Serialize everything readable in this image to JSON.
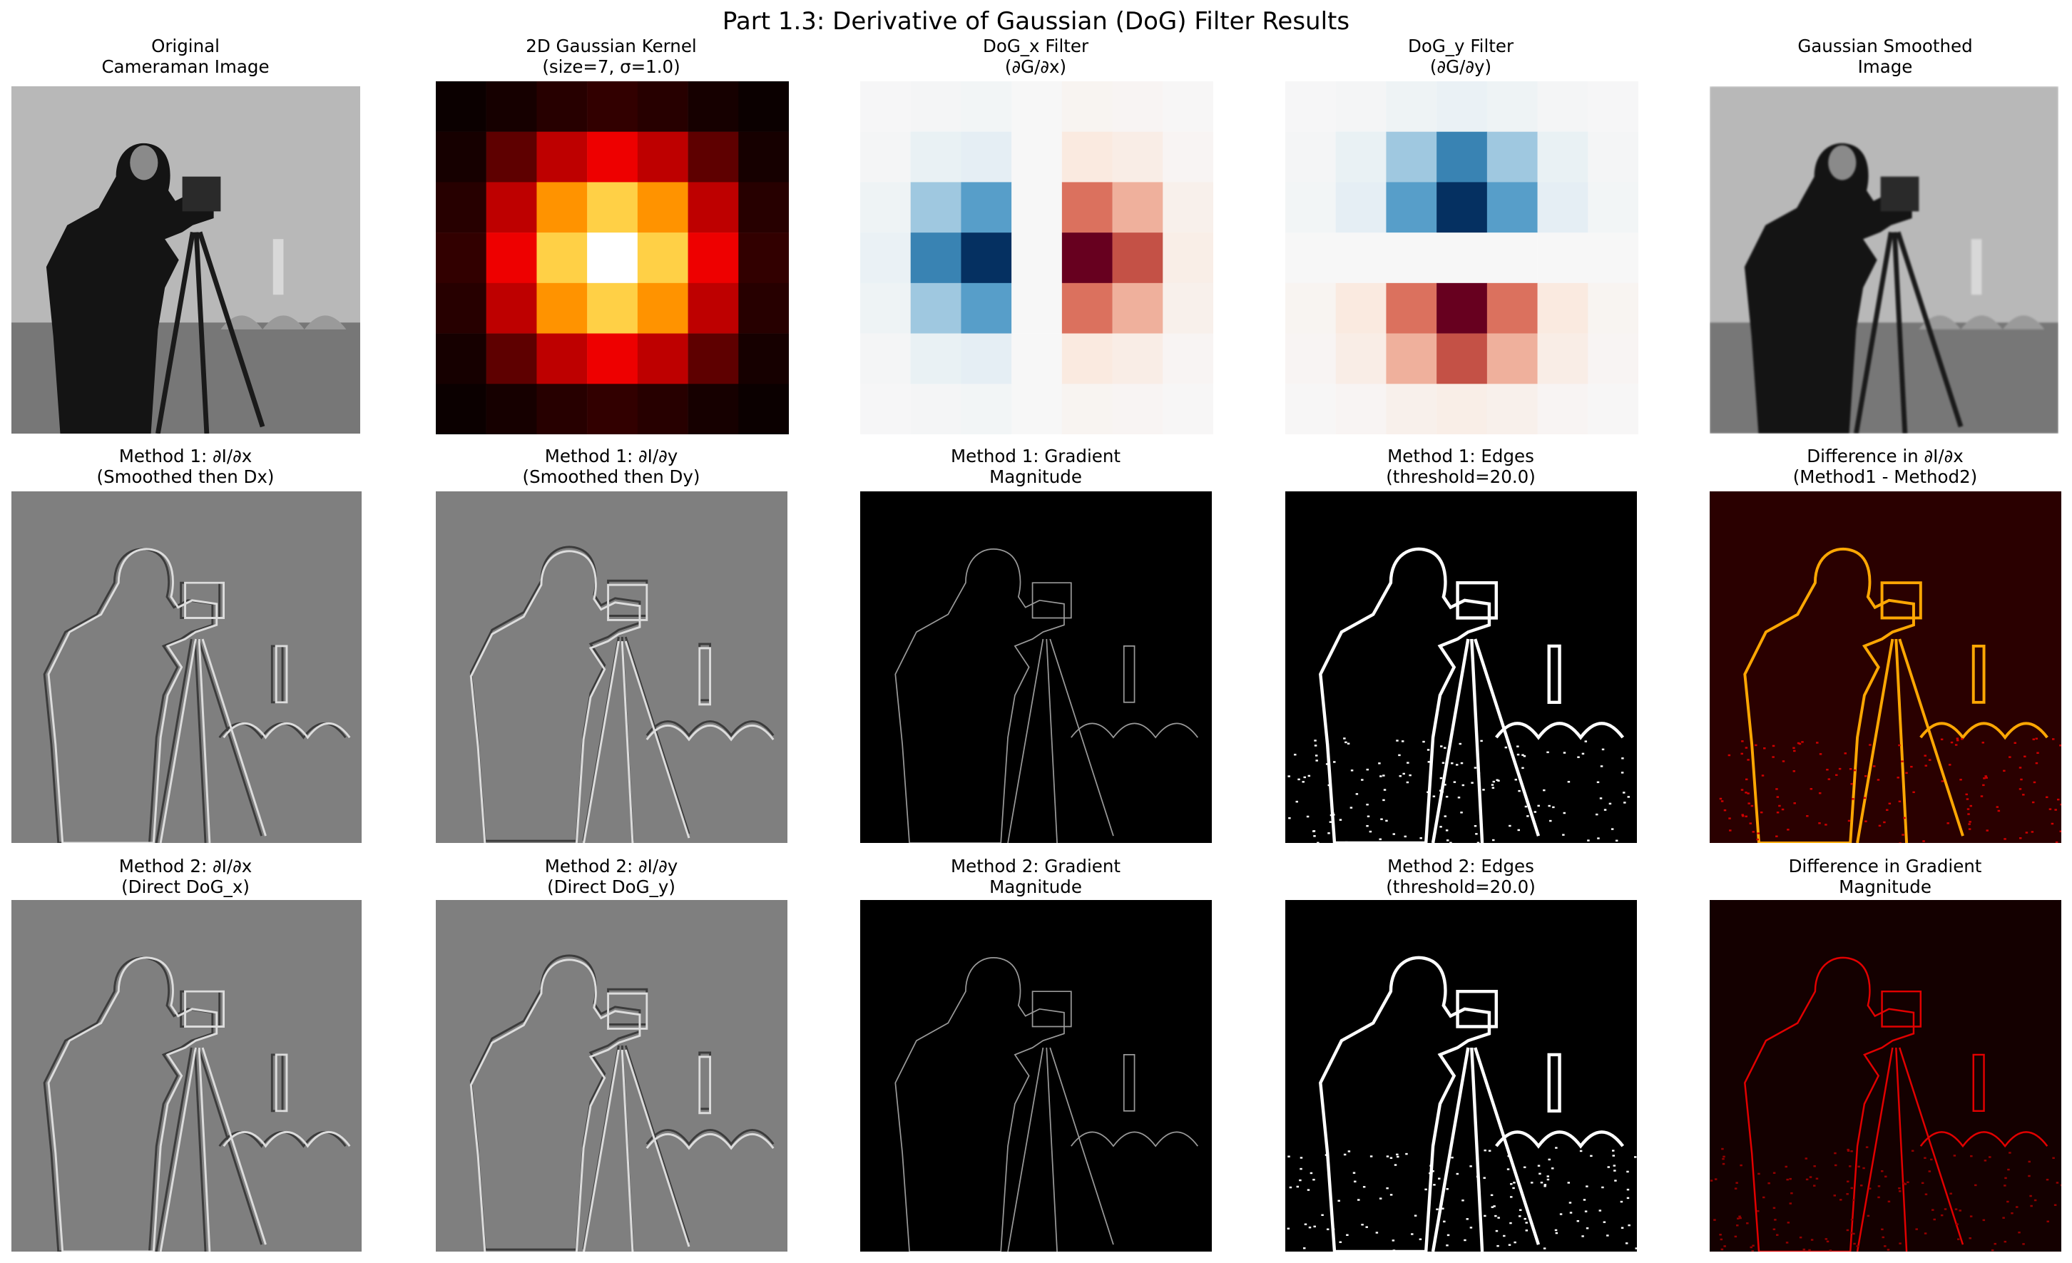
{
  "figure": {
    "title": "Part 1.3: Derivative of Gaussian (DoG) Filter Results"
  },
  "colormaps": {
    "gray": [
      "#000000",
      "#ffffff"
    ],
    "hot": [
      "#0b0000",
      "#5a0000",
      "#aa0000",
      "#ff0000",
      "#ff6a00",
      "#ffa500",
      "#ffd24a",
      "#ffffff"
    ],
    "rdbu": [
      "#67001f",
      "#d6604d",
      "#fddbc7",
      "#f7f7f7",
      "#d1e5f0",
      "#4393c3",
      "#053061"
    ]
  },
  "panels": [
    {
      "id": "original",
      "title1": "Original",
      "title2": "Cameraman Image",
      "kind": "photo",
      "cmap": "gray"
    },
    {
      "id": "gaussian-kernel",
      "title1": "2D Gaussian Kernel",
      "title2": "(size=7, σ=1.0)",
      "kind": "kernel",
      "cmap": "hot"
    },
    {
      "id": "dog-x-filter",
      "title1": "DoG_x Filter",
      "title2": "(∂G/∂x)",
      "kind": "kernel",
      "cmap": "RdBu"
    },
    {
      "id": "dog-y-filter",
      "title1": "DoG_y Filter",
      "title2": "(∂G/∂y)",
      "kind": "kernel",
      "cmap": "RdBu"
    },
    {
      "id": "gaussian-smoothed",
      "title1": "Gaussian Smoothed",
      "title2": "Image",
      "kind": "photo",
      "cmap": "gray"
    },
    {
      "id": "m1-dx",
      "title1": "Method 1: ∂I/∂x",
      "title2": "(Smoothed then Dx)",
      "kind": "derivative",
      "cmap": "gray"
    },
    {
      "id": "m1-dy",
      "title1": "Method 1: ∂I/∂y",
      "title2": "(Smoothed then Dy)",
      "kind": "derivative",
      "cmap": "gray"
    },
    {
      "id": "m1-mag",
      "title1": "Method 1: Gradient",
      "title2": "Magnitude",
      "kind": "magnitude",
      "cmap": "gray"
    },
    {
      "id": "m1-edges",
      "title1": "Method 1: Edges",
      "title2": "(threshold=20.0)",
      "kind": "edges",
      "cmap": "gray"
    },
    {
      "id": "diff-dx",
      "title1": "Difference in ∂I/∂x",
      "title2": "(Method1 - Method2)",
      "kind": "difference",
      "cmap": "hot"
    },
    {
      "id": "m2-dx",
      "title1": "Method 2: ∂I/∂x",
      "title2": "(Direct DoG_x)",
      "kind": "derivative",
      "cmap": "gray"
    },
    {
      "id": "m2-dy",
      "title1": "Method 2: ∂I/∂y",
      "title2": "(Direct DoG_y)",
      "kind": "derivative",
      "cmap": "gray"
    },
    {
      "id": "m2-mag",
      "title1": "Method 2: Gradient",
      "title2": "Magnitude",
      "kind": "magnitude",
      "cmap": "gray"
    },
    {
      "id": "m2-edges",
      "title1": "Method 2: Edges",
      "title2": "(threshold=20.0)",
      "kind": "edges",
      "cmap": "gray"
    },
    {
      "id": "diff-mag",
      "title1": "Difference in Gradient",
      "title2": "Magnitude",
      "kind": "difference",
      "cmap": "hot"
    }
  ],
  "kernels": {
    "gaussian": [
      [
        0.0,
        0.02,
        0.05,
        0.07,
        0.05,
        0.02,
        0.0
      ],
      [
        0.02,
        0.15,
        0.32,
        0.4,
        0.32,
        0.15,
        0.02
      ],
      [
        0.05,
        0.32,
        0.67,
        0.85,
        0.67,
        0.32,
        0.05
      ],
      [
        0.07,
        0.4,
        0.85,
        1.0,
        0.85,
        0.4,
        0.07
      ],
      [
        0.05,
        0.32,
        0.67,
        0.85,
        0.67,
        0.32,
        0.05
      ],
      [
        0.02,
        0.15,
        0.32,
        0.4,
        0.32,
        0.15,
        0.02
      ],
      [
        0.0,
        0.02,
        0.05,
        0.07,
        0.05,
        0.02,
        0.0
      ]
    ],
    "dog_x": [
      [
        -0.01,
        -0.03,
        -0.04,
        0.0,
        0.04,
        0.03,
        0.01
      ],
      [
        -0.03,
        -0.12,
        -0.16,
        0.0,
        0.16,
        0.12,
        0.03
      ],
      [
        -0.08,
        -0.45,
        -0.62,
        0.0,
        0.62,
        0.45,
        0.08
      ],
      [
        -0.11,
        -0.72,
        -1.0,
        0.0,
        1.0,
        0.72,
        0.11
      ],
      [
        -0.08,
        -0.45,
        -0.62,
        0.0,
        0.62,
        0.45,
        0.08
      ],
      [
        -0.03,
        -0.12,
        -0.16,
        0.0,
        0.16,
        0.12,
        0.03
      ],
      [
        -0.01,
        -0.03,
        -0.04,
        0.0,
        0.04,
        0.03,
        0.01
      ]
    ],
    "dog_y": [
      [
        -0.01,
        -0.03,
        -0.08,
        -0.11,
        -0.08,
        -0.03,
        -0.01
      ],
      [
        -0.03,
        -0.12,
        -0.45,
        -0.72,
        -0.45,
        -0.12,
        -0.03
      ],
      [
        -0.04,
        -0.16,
        -0.62,
        -1.0,
        -0.62,
        -0.16,
        -0.04
      ],
      [
        0.0,
        0.0,
        0.0,
        0.0,
        0.0,
        0.0,
        0.0
      ],
      [
        0.04,
        0.16,
        0.62,
        1.0,
        0.62,
        0.16,
        0.04
      ],
      [
        0.03,
        0.12,
        0.45,
        0.72,
        0.45,
        0.12,
        0.03
      ],
      [
        0.01,
        0.03,
        0.08,
        0.11,
        0.08,
        0.03,
        0.01
      ]
    ]
  }
}
